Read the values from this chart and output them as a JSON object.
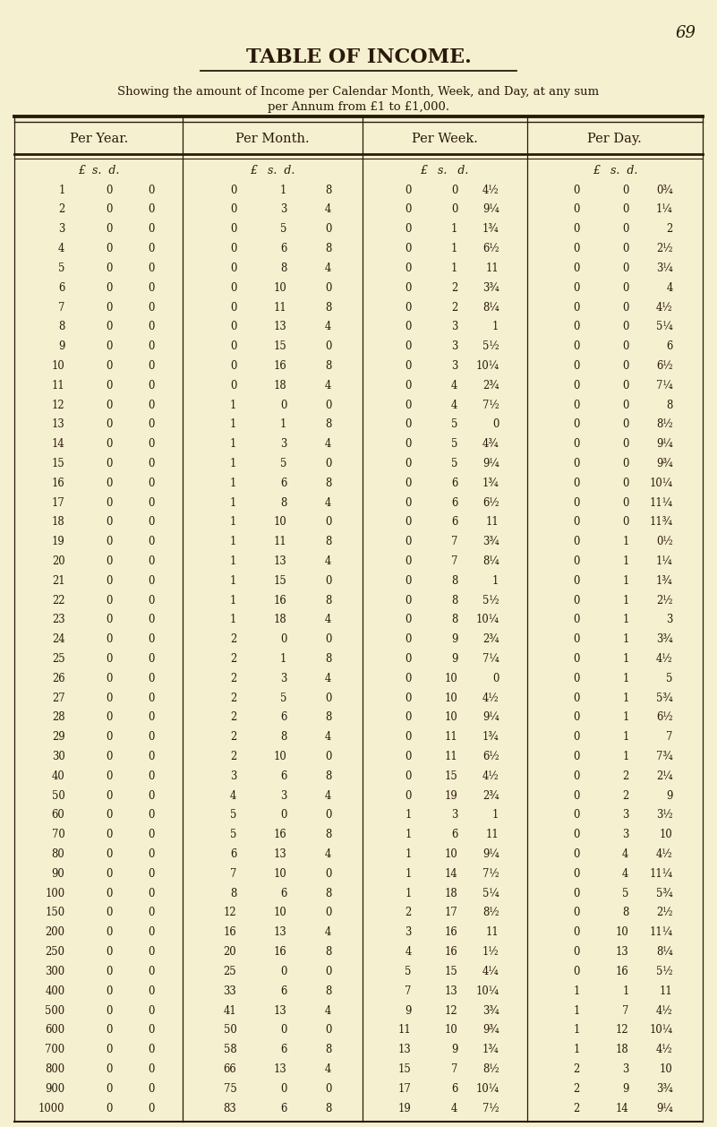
{
  "page_number": "69",
  "title": "TABLE OF INCOME.",
  "subtitle1": "Showing the amount of Income per Calendar Month, Week, and Day, at any sum",
  "subtitle2": "per Annum from £1 to £1,000.",
  "col_headers": [
    "Per Year.",
    "Per Month.",
    "Per Week.",
    "Per Day."
  ],
  "subheaders": [
    "£  s.  d.",
    "£   s.  d.",
    "£   s.   d.",
    "£   s.  d."
  ],
  "rows": [
    [
      "1",
      "0",
      "0",
      "0",
      "1",
      "8",
      "0",
      "0",
      "4½",
      "0",
      "0",
      "0¾"
    ],
    [
      "2",
      "0",
      "0",
      "0",
      "3",
      "4",
      "0",
      "0",
      "9¼",
      "0",
      "0",
      "1¼"
    ],
    [
      "3",
      "0",
      "0",
      "0",
      "5",
      "0",
      "0",
      "1",
      "1¾",
      "0",
      "0",
      "2"
    ],
    [
      "4",
      "0",
      "0",
      "0",
      "6",
      "8",
      "0",
      "1",
      "6½",
      "0",
      "0",
      "2½"
    ],
    [
      "5",
      "0",
      "0",
      "0",
      "8",
      "4",
      "0",
      "1",
      "11",
      "0",
      "0",
      "3¼"
    ],
    [
      "6",
      "0",
      "0",
      "0",
      "10",
      "0",
      "0",
      "2",
      "3¾",
      "0",
      "0",
      "4"
    ],
    [
      "7",
      "0",
      "0",
      "0",
      "11",
      "8",
      "0",
      "2",
      "8¼",
      "0",
      "0",
      "4½"
    ],
    [
      "8",
      "0",
      "0",
      "0",
      "13",
      "4",
      "0",
      "3",
      "1",
      "0",
      "0",
      "5¼"
    ],
    [
      "9",
      "0",
      "0",
      "0",
      "15",
      "0",
      "0",
      "3",
      "5½",
      "0",
      "0",
      "6"
    ],
    [
      "10",
      "0",
      "0",
      "0",
      "16",
      "8",
      "0",
      "3",
      "10¼",
      "0",
      "0",
      "6½"
    ],
    [
      "11",
      "0",
      "0",
      "0",
      "18",
      "4",
      "0",
      "4",
      "2¾",
      "0",
      "0",
      "7¼"
    ],
    [
      "12",
      "0",
      "0",
      "1",
      "0",
      "0",
      "0",
      "4",
      "7½",
      "0",
      "0",
      "8"
    ],
    [
      "13",
      "0",
      "0",
      "1",
      "1",
      "8",
      "0",
      "5",
      "0",
      "0",
      "0",
      "8½"
    ],
    [
      "14",
      "0",
      "0",
      "1",
      "3",
      "4",
      "0",
      "5",
      "4¾",
      "0",
      "0",
      "9¼"
    ],
    [
      "15",
      "0",
      "0",
      "1",
      "5",
      "0",
      "0",
      "5",
      "9¼",
      "0",
      "0",
      "9¾"
    ],
    [
      "16",
      "0",
      "0",
      "1",
      "6",
      "8",
      "0",
      "6",
      "1¾",
      "0",
      "0",
      "10¼"
    ],
    [
      "17",
      "0",
      "0",
      "1",
      "8",
      "4",
      "0",
      "6",
      "6½",
      "0",
      "0",
      "11¼"
    ],
    [
      "18",
      "0",
      "0",
      "1",
      "10",
      "0",
      "0",
      "6",
      "11",
      "0",
      "0",
      "11¾"
    ],
    [
      "19",
      "0",
      "0",
      "1",
      "11",
      "8",
      "0",
      "7",
      "3¾",
      "0",
      "1",
      "0½"
    ],
    [
      "20",
      "0",
      "0",
      "1",
      "13",
      "4",
      "0",
      "7",
      "8¼",
      "0",
      "1",
      "1¼"
    ],
    [
      "21",
      "0",
      "0",
      "1",
      "15",
      "0",
      "0",
      "8",
      "1",
      "0",
      "1",
      "1¾"
    ],
    [
      "22",
      "0",
      "0",
      "1",
      "16",
      "8",
      "0",
      "8",
      "5½",
      "0",
      "1",
      "2½"
    ],
    [
      "23",
      "0",
      "0",
      "1",
      "18",
      "4",
      "0",
      "8",
      "10¼",
      "0",
      "1",
      "3"
    ],
    [
      "24",
      "0",
      "0",
      "2",
      "0",
      "0",
      "0",
      "9",
      "2¾",
      "0",
      "1",
      "3¾"
    ],
    [
      "25",
      "0",
      "0",
      "2",
      "1",
      "8",
      "0",
      "9",
      "7¼",
      "0",
      "1",
      "4½"
    ],
    [
      "26",
      "0",
      "0",
      "2",
      "3",
      "4",
      "0",
      "10",
      "0",
      "0",
      "1",
      "5"
    ],
    [
      "27",
      "0",
      "0",
      "2",
      "5",
      "0",
      "0",
      "10",
      "4½",
      "0",
      "1",
      "5¾"
    ],
    [
      "28",
      "0",
      "0",
      "2",
      "6",
      "8",
      "0",
      "10",
      "9¼",
      "0",
      "1",
      "6½"
    ],
    [
      "29",
      "0",
      "0",
      "2",
      "8",
      "4",
      "0",
      "11",
      "1¾",
      "0",
      "1",
      "7"
    ],
    [
      "30",
      "0",
      "0",
      "2",
      "10",
      "0",
      "0",
      "11",
      "6½",
      "0",
      "1",
      "7¾"
    ],
    [
      "40",
      "0",
      "0",
      "3",
      "6",
      "8",
      "0",
      "15",
      "4½",
      "0",
      "2",
      "2¼"
    ],
    [
      "50",
      "0",
      "0",
      "4",
      "3",
      "4",
      "0",
      "19",
      "2¾",
      "0",
      "2",
      "9"
    ],
    [
      "60",
      "0",
      "0",
      "5",
      "0",
      "0",
      "1",
      "3",
      "1",
      "0",
      "3",
      "3½"
    ],
    [
      "70",
      "0",
      "0",
      "5",
      "16",
      "8",
      "1",
      "6",
      "11",
      "0",
      "3",
      "10"
    ],
    [
      "80",
      "0",
      "0",
      "6",
      "13",
      "4",
      "1",
      "10",
      "9¼",
      "0",
      "4",
      "4½"
    ],
    [
      "90",
      "0",
      "0",
      "7",
      "10",
      "0",
      "1",
      "14",
      "7½",
      "0",
      "4",
      "11¼"
    ],
    [
      "100",
      "0",
      "0",
      "8",
      "6",
      "8",
      "1",
      "18",
      "5¼",
      "0",
      "5",
      "5¾"
    ],
    [
      "150",
      "0",
      "0",
      "12",
      "10",
      "0",
      "2",
      "17",
      "8½",
      "0",
      "8",
      "2½"
    ],
    [
      "200",
      "0",
      "0",
      "16",
      "13",
      "4",
      "3",
      "16",
      "11",
      "0",
      "10",
      "11¼"
    ],
    [
      "250",
      "0",
      "0",
      "20",
      "16",
      "8",
      "4",
      "16",
      "1½",
      "0",
      "13",
      "8¼"
    ],
    [
      "300",
      "0",
      "0",
      "25",
      "0",
      "0",
      "5",
      "15",
      "4¼",
      "0",
      "16",
      "5½"
    ],
    [
      "400",
      "0",
      "0",
      "33",
      "6",
      "8",
      "7",
      "13",
      "10¼",
      "1",
      "1",
      "11"
    ],
    [
      "500",
      "0",
      "0",
      "41",
      "13",
      "4",
      "9",
      "12",
      "3¾",
      "1",
      "7",
      "4½"
    ],
    [
      "600",
      "0",
      "0",
      "50",
      "0",
      "0",
      "11",
      "10",
      "9¾",
      "1",
      "12",
      "10¼"
    ],
    [
      "700",
      "0",
      "0",
      "58",
      "6",
      "8",
      "13",
      "9",
      "1¾",
      "1",
      "18",
      "4½"
    ],
    [
      "800",
      "0",
      "0",
      "66",
      "13",
      "4",
      "15",
      "7",
      "8½",
      "2",
      "3",
      "10"
    ],
    [
      "900",
      "0",
      "0",
      "75",
      "0",
      "0",
      "17",
      "6",
      "10¼",
      "2",
      "9",
      "3¾"
    ],
    [
      "1000",
      "0",
      "0",
      "83",
      "6",
      "8",
      "19",
      "4",
      "7½",
      "2",
      "14",
      "9¼"
    ]
  ],
  "bg_color": "#f5f0d0",
  "text_color": "#2a1a0a",
  "line_color": "#2a1a0a"
}
